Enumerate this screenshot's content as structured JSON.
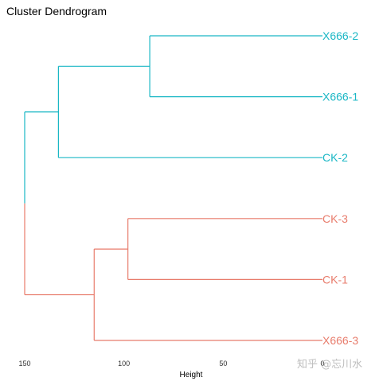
{
  "chart_data": {
    "type": "dendrogram",
    "title": "Cluster Dendrogram",
    "xlabel": "Height",
    "x_ticks": [
      150,
      100,
      50,
      0
    ],
    "xlim": [
      0,
      150
    ],
    "leaves": [
      "X666-2",
      "X666-1",
      "CK-2",
      "CK-3",
      "CK-1",
      "X666-3"
    ],
    "merges": [
      {
        "left": "X666-2",
        "right": "X666-1",
        "height": 87
      },
      {
        "left": "CK-3",
        "right": "CK-1",
        "height": 98
      },
      {
        "left": "CK-3/CK-1",
        "right": "X666-3",
        "height": 115
      },
      {
        "left": "X666-2/X666-1",
        "right": "CK-2",
        "height": 133
      },
      {
        "left": "X666-2/X666-1/CK-2",
        "right": "CK-3/CK-1/X666-3",
        "height": 150
      }
    ],
    "clusters": [
      {
        "members": [
          "X666-2",
          "X666-1",
          "CK-2"
        ],
        "color": "#1ab7c5"
      },
      {
        "members": [
          "CK-3",
          "CK-1",
          "X666-3"
        ],
        "color": "#e87c6c"
      }
    ]
  },
  "watermark": "知乎 @忘川水"
}
